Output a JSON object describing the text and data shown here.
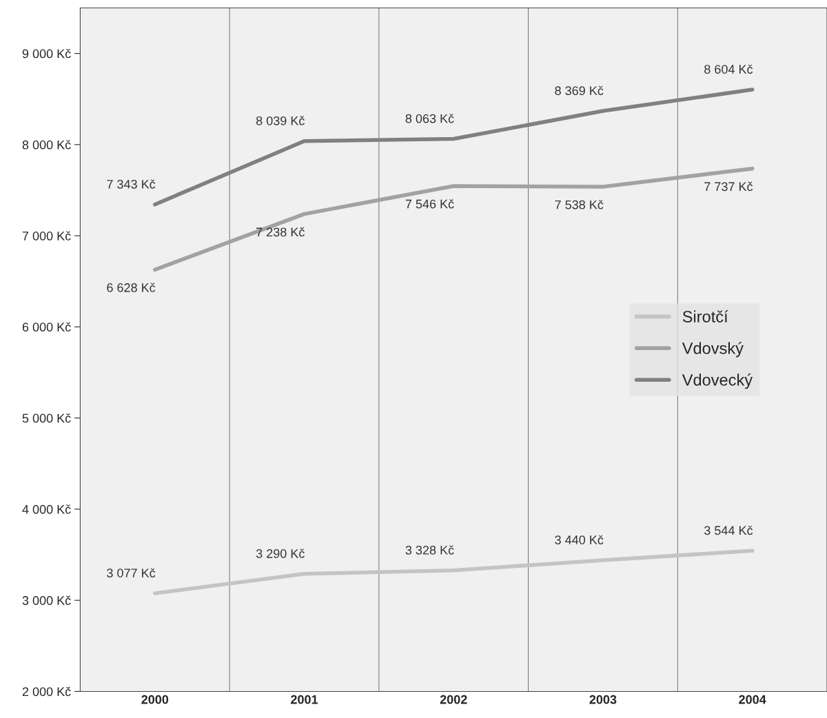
{
  "chart_data": {
    "type": "line",
    "categories": [
      "2000",
      "2001",
      "2002",
      "2003",
      "2004"
    ],
    "series": [
      {
        "name": "Sirotčí",
        "color": "#c4c4c4",
        "values": [
          3077,
          3290,
          3328,
          3440,
          3544
        ],
        "value_labels": [
          "3 077 Kč",
          "3 290 Kč",
          "3 328 Kč",
          "3 440 Kč",
          "3 544 Kč"
        ]
      },
      {
        "name": "Vdovský",
        "color": "#a2a2a2",
        "values": [
          6628,
          7238,
          7546,
          7538,
          7737
        ],
        "value_labels": [
          "6 628 Kč",
          "7 238 Kč",
          "7 546 Kč",
          "7 538 Kč",
          "7 737 Kč"
        ]
      },
      {
        "name": "Vdovecký",
        "color": "#808080",
        "values": [
          7343,
          8039,
          8063,
          8369,
          8604
        ],
        "value_labels": [
          "7 343 Kč",
          "8 039 Kč",
          "8 063 Kč",
          "8 369 Kč",
          "8 604 Kč"
        ]
      }
    ],
    "ylim": [
      2000,
      9500
    ],
    "yticks": [
      {
        "value": 2000,
        "label": "2 000 Kč"
      },
      {
        "value": 3000,
        "label": "3 000 Kč"
      },
      {
        "value": 4000,
        "label": "4 000 Kč"
      },
      {
        "value": 5000,
        "label": "5 000 Kč"
      },
      {
        "value": 6000,
        "label": "6 000 Kč"
      },
      {
        "value": 7000,
        "label": "7 000 Kč"
      },
      {
        "value": 8000,
        "label": "8 000 Kč"
      },
      {
        "value": 9000,
        "label": "9 000 Kč"
      }
    ],
    "grid": "x",
    "legend": "right",
    "marker": "none",
    "line_style": "solid"
  }
}
